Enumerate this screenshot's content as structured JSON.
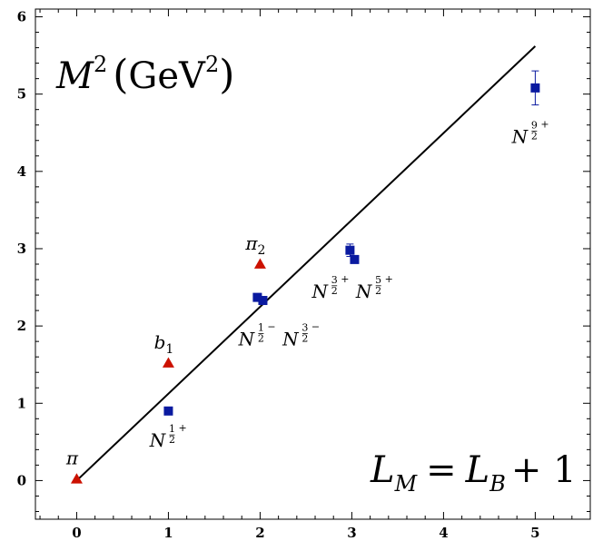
{
  "chart_data": {
    "type": "scatter",
    "title": "",
    "xlabel": "",
    "ylabel": "",
    "xlim": [
      -0.45,
      5.6
    ],
    "ylim": [
      -0.5,
      6.1
    ],
    "x_ticks": [
      "0",
      "1",
      "2",
      "3",
      "4",
      "5"
    ],
    "y_ticks": [
      "0",
      "1",
      "2",
      "3",
      "4",
      "5",
      "6"
    ],
    "grid": false,
    "legend": "none",
    "annotations": {
      "ylabel_text": "M",
      "ylabel_sup": "2",
      "ylabel_unit": "GeV",
      "ylabel_unit_sup": "2",
      "relation_lhs": "L",
      "relation_lhs_sub": "M",
      "relation_eq": "=",
      "relation_rhs": "L",
      "relation_rhs_sub": "B",
      "relation_tail": "+ 1"
    },
    "trend_line": {
      "x": [
        0,
        5
      ],
      "y": [
        0,
        5.62
      ]
    },
    "mesons": {
      "color": "#cc1100",
      "marker": "triangle",
      "points": [
        {
          "x": 0,
          "y": 0.02,
          "label": "π",
          "sub": ""
        },
        {
          "x": 1,
          "y": 1.52,
          "label": "b",
          "sub": "1"
        },
        {
          "x": 2,
          "y": 2.8,
          "label": "π",
          "sub": "2"
        }
      ]
    },
    "baryons": {
      "color": "#0a1aa0",
      "marker": "square",
      "points": [
        {
          "x": 1,
          "y": 0.9,
          "err": 0
        },
        {
          "x": 1.97,
          "y": 2.37,
          "err": 0
        },
        {
          "x": 2.03,
          "y": 2.33,
          "err": 0
        },
        {
          "x": 2.98,
          "y": 2.98,
          "err": 0.08
        },
        {
          "x": 3.03,
          "y": 2.86,
          "err": 0
        },
        {
          "x": 5,
          "y": 5.08,
          "err": 0.22
        }
      ],
      "labels": [
        {
          "x": 1,
          "y": 0.52,
          "base": "N",
          "num": "1",
          "den": "2",
          "sign": "+"
        },
        {
          "x": 1.97,
          "y": 1.83,
          "base": "N",
          "num": "1",
          "den": "2",
          "sign": "−"
        },
        {
          "x": 2.45,
          "y": 1.83,
          "base": "N",
          "num": "3",
          "den": "2",
          "sign": "−"
        },
        {
          "x": 2.77,
          "y": 2.45,
          "base": "N",
          "num": "3",
          "den": "2",
          "sign": "+"
        },
        {
          "x": 3.25,
          "y": 2.45,
          "base": "N",
          "num": "5",
          "den": "2",
          "sign": "+"
        },
        {
          "x": 4.95,
          "y": 4.45,
          "base": "N",
          "num": "9",
          "den": "2",
          "sign": "+"
        }
      ]
    }
  }
}
